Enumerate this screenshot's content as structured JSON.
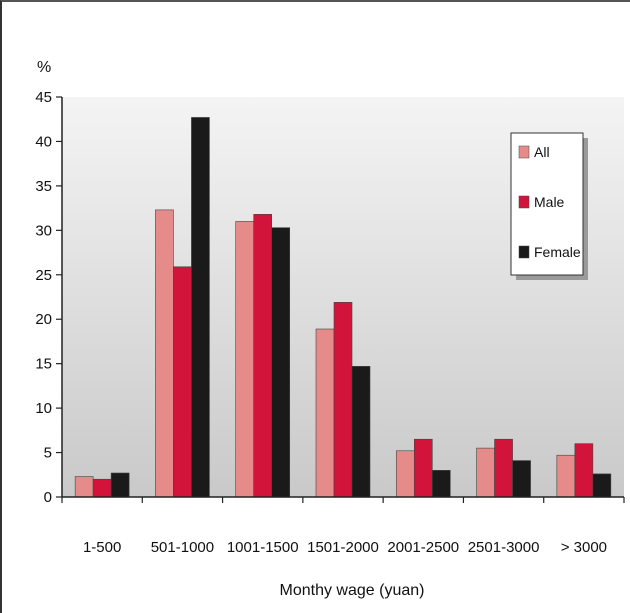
{
  "chart_data": {
    "type": "bar",
    "title": "",
    "ylabel": "%",
    "xlabel": "Monthy wage (yuan)",
    "ylim": [
      0,
      45
    ],
    "yticks": [
      0,
      5,
      10,
      15,
      20,
      25,
      30,
      35,
      40,
      45
    ],
    "grid": false,
    "legend_position": "top-right",
    "categories": [
      "1-500",
      "501-1000",
      "1001-1500",
      "1501-2000",
      "2001-2500",
      "2501-3000",
      "> 3000"
    ],
    "series": [
      {
        "name": "All",
        "color": "#e58c8a",
        "values": [
          2.3,
          32.3,
          31.0,
          18.9,
          5.2,
          5.5,
          4.7
        ]
      },
      {
        "name": "Male",
        "color": "#d2143a",
        "values": [
          2.0,
          25.9,
          31.8,
          21.9,
          6.5,
          6.5,
          6.0
        ]
      },
      {
        "name": "Female",
        "color": "#1a1a1a",
        "values": [
          2.7,
          42.7,
          30.3,
          14.7,
          3.0,
          4.1,
          2.6
        ]
      }
    ]
  }
}
